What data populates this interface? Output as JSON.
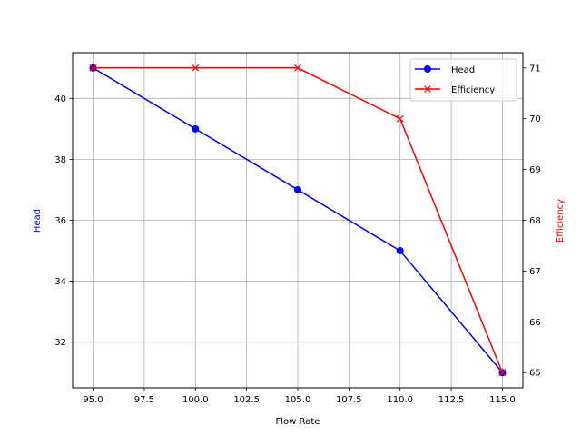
{
  "chart_data": {
    "type": "line",
    "title": "",
    "xlabel": "Flow Rate",
    "ylabel": "Head",
    "ylabel_right": "Efficiency",
    "x": [
      95,
      100,
      105,
      110,
      115
    ],
    "xlim": [
      94,
      116
    ],
    "ylim": [
      30.5,
      41.5
    ],
    "ylim_right": [
      64.7,
      71.3
    ],
    "xticks": [
      "95.0",
      "97.5",
      "100.0",
      "102.5",
      "105.0",
      "107.5",
      "110.0",
      "112.5",
      "115.0"
    ],
    "yticks": [
      "32",
      "34",
      "36",
      "38",
      "40"
    ],
    "yticks_right": [
      "65",
      "66",
      "67",
      "68",
      "69",
      "70",
      "71"
    ],
    "grid": true,
    "legend_position": "upper right",
    "series": [
      {
        "name": "Head",
        "axis": "left",
        "values": [
          41,
          39,
          37,
          35,
          31
        ],
        "color": "#0000ff",
        "marker": "circle"
      },
      {
        "name": "Efficiency",
        "axis": "right",
        "values": [
          71,
          71,
          71,
          70,
          65
        ],
        "color": "#ff0000",
        "marker": "x"
      }
    ]
  }
}
